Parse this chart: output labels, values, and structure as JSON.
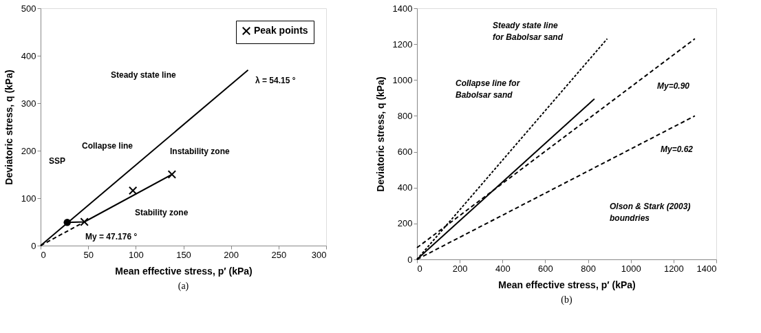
{
  "chart_data": [
    {
      "type": "line",
      "xlabel": "Mean effective stress, p′ (kPa)",
      "ylabel": "Deviatoric stress, q  (kPa)",
      "xlim": [
        0,
        300
      ],
      "ylim": [
        0,
        500
      ],
      "xticks": [
        0,
        50,
        100,
        150,
        200,
        250,
        300
      ],
      "yticks": [
        0,
        100,
        200,
        300,
        400,
        500
      ],
      "grid": false,
      "legend": "top right",
      "series": [
        {
          "color": "#000000",
          "line_style": "solid",
          "x": [
            0,
            218
          ],
          "values": [
            0,
            370
          ]
        },
        {
          "color": "#000000",
          "line_style": "dashed",
          "x": [
            0,
            46
          ],
          "values": [
            0,
            50
          ]
        },
        {
          "color": "#000000",
          "line_style": "solid",
          "x": [
            28,
            46,
            138
          ],
          "values": [
            49,
            50,
            150
          ]
        },
        {
          "type": "scatter",
          "color": "#000000",
          "marker": "circle",
          "x": [
            28
          ],
          "values": [
            49
          ]
        },
        {
          "type": "scatter",
          "name": "Peak points",
          "color": "#000000",
          "marker": "cross",
          "x": [
            46,
            97,
            138
          ],
          "values": [
            50,
            116,
            150
          ]
        }
      ],
      "annotations": [
        "Steady state line",
        "λ = 54.15 °",
        "Collapse line",
        "Instability zone",
        "SSP",
        "Stability zone",
        "My = 47.176 °",
        "(a)"
      ]
    },
    {
      "type": "line",
      "xlabel": "Mean effective stress,  p′ (kPa)",
      "ylabel": "Deviatoric stress, q (kPa)",
      "xlim": [
        0,
        1400
      ],
      "ylim": [
        0,
        1400
      ],
      "xticks": [
        0,
        200,
        400,
        600,
        800,
        1000,
        1200,
        1400
      ],
      "yticks": [
        0,
        200,
        400,
        600,
        800,
        1000,
        1200,
        1400
      ],
      "grid": false,
      "series": [
        {
          "color": "#000000",
          "line_style": "dotted",
          "x": [
            0,
            890
          ],
          "values": [
            0,
            1230
          ]
        },
        {
          "color": "#000000",
          "line_style": "solid",
          "x": [
            0,
            830
          ],
          "values": [
            0,
            895
          ]
        },
        {
          "color": "#000000",
          "line_style": "dashed",
          "x": [
            0,
            1300
          ],
          "values": [
            65,
            1230
          ]
        },
        {
          "color": "#000000",
          "line_style": "dashed",
          "x": [
            0,
            1300
          ],
          "values": [
            0,
            800
          ]
        }
      ],
      "annotations": [
        "Steady state line\nfor Babolsar sand",
        "Collapse line for\nBabolsar sand",
        "My=0.90",
        "My=0.62",
        "Olson & Stark (2003)\nboundries",
        "(b)"
      ]
    }
  ]
}
